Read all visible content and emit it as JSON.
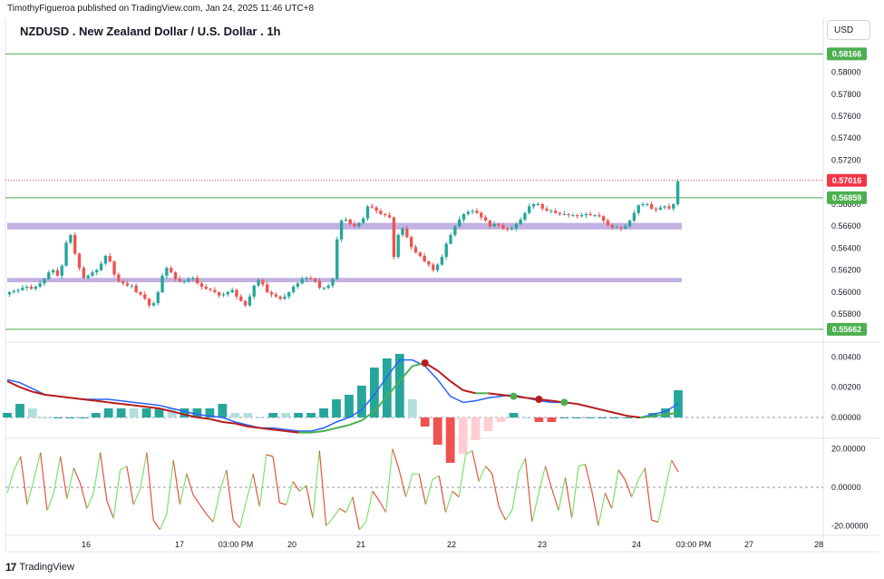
{
  "header": {
    "published": "TimothyFigueroa published on TradingView.com, Jan 24, 2025 11:46 UTC+8",
    "title": "NZDUSD . New Zealand Dollar / U.S. Dollar . 1h",
    "currency": "USD"
  },
  "footer": {
    "brand": "TradingView",
    "logo": "tradingview-logo-icon"
  },
  "colors": {
    "up": "#26a69a",
    "down": "#ef5350",
    "zone": "#b39ddb",
    "level": "#4caf50",
    "current": "#f23645",
    "macd": "#2962ff",
    "signal": "#b71c1c",
    "signal_up": "#4caf50",
    "osc_up": "#7be36a",
    "osc_down": "#e0553f"
  },
  "chart_data": [
    {
      "type": "candlestick",
      "title": "NZDUSD . New Zealand Dollar / U.S. Dollar . 1h",
      "x_ticks": [
        "16",
        "17",
        "03:00 PM",
        "20",
        "21",
        "22",
        "23",
        "24",
        "03:00 PM",
        "27",
        "28"
      ],
      "y_ticks": [
        0.558,
        0.56,
        0.562,
        0.564,
        0.566,
        0.568,
        0.57,
        0.572,
        0.574,
        0.576,
        0.578,
        0.58
      ],
      "ylim": [
        0.5562,
        0.5826
      ],
      "levels": [
        {
          "price": 0.58166,
          "label": "0.58166",
          "color": "#4caf50"
        },
        {
          "price": 0.56859,
          "label": "0.56859",
          "color": "#4caf50"
        },
        {
          "price": 0.55662,
          "label": "0.55662",
          "color": "#4caf50"
        },
        {
          "price": 0.57016,
          "label": "0.57016",
          "color": "#f23645",
          "style": "dotted"
        }
      ],
      "zones": [
        {
          "from": 0.5657,
          "to": 0.5663
        },
        {
          "from": 0.5609,
          "to": 0.5613
        }
      ],
      "closes": [
        0.56,
        0.5601,
        0.5602,
        0.5604,
        0.5605,
        0.5603,
        0.5605,
        0.5608,
        0.5612,
        0.5618,
        0.562,
        0.5615,
        0.5624,
        0.5645,
        0.5652,
        0.5635,
        0.5622,
        0.5613,
        0.5615,
        0.5618,
        0.562,
        0.5626,
        0.5633,
        0.5628,
        0.5616,
        0.561,
        0.5608,
        0.5606,
        0.5606,
        0.56,
        0.5598,
        0.5594,
        0.5588,
        0.559,
        0.56,
        0.5615,
        0.5622,
        0.5618,
        0.5612,
        0.561,
        0.561,
        0.5612,
        0.5613,
        0.5608,
        0.5605,
        0.5603,
        0.5602,
        0.56,
        0.5597,
        0.5598,
        0.56,
        0.5602,
        0.5596,
        0.5592,
        0.5588,
        0.5596,
        0.5606,
        0.5611,
        0.5607,
        0.56,
        0.5598,
        0.5596,
        0.5594,
        0.5596,
        0.56,
        0.5605,
        0.5608,
        0.5612,
        0.5613,
        0.5612,
        0.561,
        0.5604,
        0.5604,
        0.5606,
        0.5612,
        0.5648,
        0.5665,
        0.5666,
        0.5662,
        0.566,
        0.5663,
        0.5667,
        0.5678,
        0.5677,
        0.5674,
        0.5671,
        0.567,
        0.5668,
        0.5632,
        0.5652,
        0.5658,
        0.565,
        0.5641,
        0.5636,
        0.5633,
        0.5628,
        0.5625,
        0.562,
        0.5625,
        0.5632,
        0.5644,
        0.5652,
        0.566,
        0.5666,
        0.5671,
        0.5673,
        0.5674,
        0.5672,
        0.5668,
        0.5665,
        0.566,
        0.5662,
        0.5661,
        0.5658,
        0.5657,
        0.5658,
        0.5662,
        0.5666,
        0.5672,
        0.5678,
        0.568,
        0.568,
        0.5676,
        0.5674,
        0.5674,
        0.5672,
        0.5671,
        0.5671,
        0.567,
        0.567,
        0.5669,
        0.567,
        0.5671,
        0.567,
        0.567,
        0.5669,
        0.5665,
        0.5661,
        0.5659,
        0.5659,
        0.5658,
        0.566,
        0.5665,
        0.5672,
        0.5679,
        0.568,
        0.568,
        0.5676,
        0.5675,
        0.5677,
        0.5678,
        0.5676,
        0.568,
        0.5701
      ]
    },
    {
      "type": "line",
      "name": "macd",
      "y_ticks": [
        0.004,
        0.002,
        0.0
      ],
      "ylim": [
        -0.0012,
        0.0048
      ],
      "series": [
        {
          "key": "fast",
          "values": [
            0.0025,
            0.0023,
            0.0019,
            0.0015,
            0.0014,
            0.0013,
            0.0012,
            0.0012,
            0.0012,
            0.0011,
            0.001,
            0.0009,
            0.0008,
            0.0006,
            0.0004,
            0.0002,
            0.0001,
            0.0,
            -0.0003,
            -0.0005,
            -0.0007,
            -0.0007,
            -0.0008,
            -0.0009,
            -0.0009,
            -0.0007,
            -0.0003,
            0.0,
            0.0005,
            0.0015,
            0.0027,
            0.0038,
            0.0038,
            0.0034,
            0.0025,
            0.0014,
            0.001,
            0.0011,
            0.0013,
            0.0014,
            0.0015,
            0.0013,
            0.0011,
            0.001,
            0.001,
            0.0009,
            0.0007,
            0.0005,
            0.0003,
            0.0001,
            0.0,
            0.0002,
            0.0004,
            0.0009
          ]
        },
        {
          "key": "signal",
          "values": [
            0.0024,
            0.002,
            0.0017,
            0.0015,
            0.0014,
            0.0013,
            0.0012,
            0.0011,
            0.001,
            0.0009,
            0.0008,
            0.0007,
            0.0006,
            0.0004,
            0.0002,
            0.0,
            -0.0001,
            -0.0003,
            -0.0004,
            -0.0006,
            -0.0007,
            -0.0008,
            -0.0009,
            -0.001,
            -0.001,
            -0.0009,
            -0.0007,
            -0.0005,
            -0.0002,
            0.0004,
            0.0014,
            0.0024,
            0.0034,
            0.0036,
            0.0031,
            0.0024,
            0.0018,
            0.0016,
            0.0016,
            0.0015,
            0.0014,
            0.0013,
            0.0012,
            0.0011,
            0.001,
            0.0009,
            0.0007,
            0.0005,
            0.0003,
            0.0001,
            0.0,
            0.0001,
            0.0002,
            0.0003
          ]
        }
      ],
      "cross_points": [
        0.0013,
        0.0001,
        0.0001,
        -0.001,
        0.0036,
        0.0014,
        0.0013,
        0.001,
        0.0011,
        0.0
      ]
    },
    {
      "type": "line",
      "name": "oscillator",
      "y_ticks": [
        20.0,
        0.0,
        -20.0
      ],
      "ylim": [
        -24,
        24
      ],
      "values": [
        -3,
        9,
        16,
        -9,
        4,
        18,
        -12,
        -3,
        16,
        -6,
        10,
        2,
        -11,
        -3,
        18,
        -7,
        -16,
        9,
        11,
        -9,
        -1,
        18,
        -17,
        -22,
        -14,
        14,
        -9,
        7,
        -4,
        -9,
        -14,
        -18,
        -2,
        9,
        -17,
        -21,
        -7,
        7,
        -10,
        17,
        16,
        -8,
        -9,
        3,
        -2,
        1,
        -16,
        19,
        -20,
        -16,
        -11,
        -13,
        -5,
        -22,
        -18,
        -2,
        -7,
        -13,
        20,
        9,
        -5,
        7,
        7,
        -9,
        4,
        6,
        -13,
        -2,
        -5,
        17,
        19,
        3,
        11,
        7,
        -10,
        -17,
        -12,
        8,
        15,
        -18,
        -3,
        11,
        -1,
        -12,
        5,
        -16,
        11,
        12,
        -2,
        -20,
        -3,
        -11,
        9,
        4,
        -5,
        4,
        10,
        -17,
        -18,
        -2,
        14,
        8
      ]
    }
  ]
}
